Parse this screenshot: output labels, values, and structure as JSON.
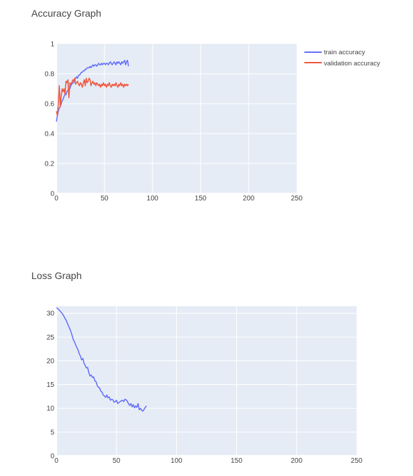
{
  "chart_data": [
    {
      "type": "line",
      "title": "Accuracy Graph",
      "xlabel": "",
      "ylabel": "",
      "xlim": [
        0,
        250
      ],
      "ylim": [
        0,
        1
      ],
      "xticks": [
        0,
        50,
        100,
        150,
        200,
        250
      ],
      "yticks": [
        0,
        0.2,
        0.4,
        0.6,
        0.8,
        1
      ],
      "ytick_labels": [
        "0",
        "0.2",
        "0.4",
        "0.6",
        "0.8",
        "1"
      ],
      "grid": true,
      "legend": "top-right",
      "series": [
        {
          "name": "train accuracy",
          "color": "#636efa",
          "x": [
            0,
            1,
            2,
            3,
            4,
            5,
            6,
            7,
            8,
            9,
            10,
            11,
            12,
            13,
            14,
            15,
            16,
            17,
            18,
            19,
            20,
            21,
            22,
            23,
            24,
            25,
            26,
            27,
            28,
            29,
            30,
            31,
            32,
            33,
            34,
            35,
            36,
            37,
            38,
            39,
            40,
            41,
            42,
            43,
            44,
            45,
            46,
            47,
            48,
            49,
            50,
            51,
            52,
            53,
            54,
            55,
            56,
            57,
            58,
            59,
            60,
            61,
            62,
            63,
            64,
            65,
            66,
            67,
            68,
            69,
            70,
            71,
            72,
            73,
            74,
            75
          ],
          "values": [
            0.48,
            0.52,
            0.55,
            0.57,
            0.58,
            0.6,
            0.62,
            0.63,
            0.65,
            0.66,
            0.66,
            0.68,
            0.69,
            0.7,
            0.7,
            0.72,
            0.73,
            0.74,
            0.74,
            0.76,
            0.77,
            0.78,
            0.77,
            0.79,
            0.79,
            0.8,
            0.81,
            0.81,
            0.82,
            0.82,
            0.83,
            0.83,
            0.84,
            0.84,
            0.84,
            0.85,
            0.84,
            0.85,
            0.86,
            0.85,
            0.86,
            0.86,
            0.85,
            0.86,
            0.87,
            0.86,
            0.86,
            0.87,
            0.86,
            0.87,
            0.87,
            0.86,
            0.87,
            0.87,
            0.86,
            0.87,
            0.88,
            0.87,
            0.86,
            0.87,
            0.88,
            0.87,
            0.86,
            0.88,
            0.87,
            0.88,
            0.87,
            0.86,
            0.88,
            0.87,
            0.88,
            0.89,
            0.86,
            0.88,
            0.89,
            0.85
          ]
        },
        {
          "name": "validation accuracy",
          "color": "#ef553b",
          "x": [
            0,
            1,
            2,
            3,
            4,
            5,
            6,
            7,
            8,
            9,
            10,
            11,
            12,
            13,
            14,
            15,
            16,
            17,
            18,
            19,
            20,
            21,
            22,
            23,
            24,
            25,
            26,
            27,
            28,
            29,
            30,
            31,
            32,
            33,
            34,
            35,
            36,
            37,
            38,
            39,
            40,
            41,
            42,
            43,
            44,
            45,
            46,
            47,
            48,
            49,
            50,
            51,
            52,
            53,
            54,
            55,
            56,
            57,
            58,
            59,
            60,
            61,
            62,
            63,
            64,
            65,
            66,
            67,
            68,
            69,
            70,
            71,
            72,
            73,
            74,
            75
          ],
          "values": [
            0.55,
            0.52,
            0.6,
            0.72,
            0.58,
            0.65,
            0.7,
            0.68,
            0.7,
            0.66,
            0.75,
            0.74,
            0.76,
            0.64,
            0.74,
            0.73,
            0.74,
            0.76,
            0.75,
            0.77,
            0.73,
            0.74,
            0.75,
            0.73,
            0.72,
            0.74,
            0.73,
            0.71,
            0.74,
            0.76,
            0.72,
            0.77,
            0.74,
            0.75,
            0.77,
            0.76,
            0.72,
            0.74,
            0.75,
            0.73,
            0.74,
            0.72,
            0.74,
            0.73,
            0.72,
            0.73,
            0.71,
            0.73,
            0.72,
            0.74,
            0.72,
            0.73,
            0.71,
            0.73,
            0.72,
            0.74,
            0.72,
            0.71,
            0.73,
            0.72,
            0.73,
            0.72,
            0.74,
            0.72,
            0.71,
            0.73,
            0.72,
            0.74,
            0.72,
            0.73,
            0.71,
            0.73,
            0.72,
            0.73,
            0.72,
            0.73
          ]
        }
      ]
    },
    {
      "type": "line",
      "title": "Loss Graph",
      "xlabel": "",
      "ylabel": "",
      "xlim": [
        0,
        250
      ],
      "ylim": [
        0,
        31.5
      ],
      "xticks": [
        0,
        50,
        100,
        150,
        200,
        250
      ],
      "yticks": [
        0,
        5,
        10,
        15,
        20,
        25,
        30
      ],
      "ytick_labels": [
        "0",
        "5",
        "10",
        "15",
        "20",
        "25",
        "30"
      ],
      "grid": true,
      "series": [
        {
          "color": "#636efa",
          "x": [
            0,
            1,
            2,
            3,
            4,
            5,
            6,
            7,
            8,
            9,
            10,
            11,
            12,
            13,
            14,
            15,
            16,
            17,
            18,
            19,
            20,
            21,
            22,
            23,
            24,
            25,
            26,
            27,
            28,
            29,
            30,
            31,
            32,
            33,
            34,
            35,
            36,
            37,
            38,
            39,
            40,
            41,
            42,
            43,
            44,
            45,
            46,
            47,
            48,
            49,
            50,
            51,
            52,
            53,
            54,
            55,
            56,
            57,
            58,
            59,
            60,
            61,
            62,
            63,
            64,
            65,
            66,
            67,
            68,
            69,
            70,
            71,
            72,
            73,
            74,
            75
          ],
          "values": [
            31.2,
            31.0,
            30.8,
            30.5,
            30.2,
            29.9,
            29.5,
            29.0,
            28.6,
            28.0,
            27.4,
            26.8,
            26.2,
            25.4,
            24.5,
            24.0,
            23.4,
            22.8,
            22.3,
            21.5,
            21.0,
            20.2,
            20.5,
            19.5,
            19.0,
            18.5,
            18.6,
            17.5,
            16.8,
            17.0,
            16.5,
            16.6,
            15.8,
            15.6,
            14.8,
            14.4,
            14.3,
            13.6,
            13.4,
            12.8,
            12.6,
            12.3,
            12.8,
            12.2,
            12.4,
            11.7,
            11.9,
            11.8,
            11.3,
            11.4,
            11.7,
            11.0,
            11.2,
            11.4,
            11.6,
            11.7,
            11.4,
            11.9,
            11.8,
            11.5,
            11.0,
            10.6,
            11.0,
            10.3,
            10.8,
            10.1,
            10.5,
            10.2,
            11.0,
            9.7,
            10.0,
            9.6,
            9.4,
            9.8,
            10.2,
            10.5
          ]
        }
      ]
    }
  ]
}
